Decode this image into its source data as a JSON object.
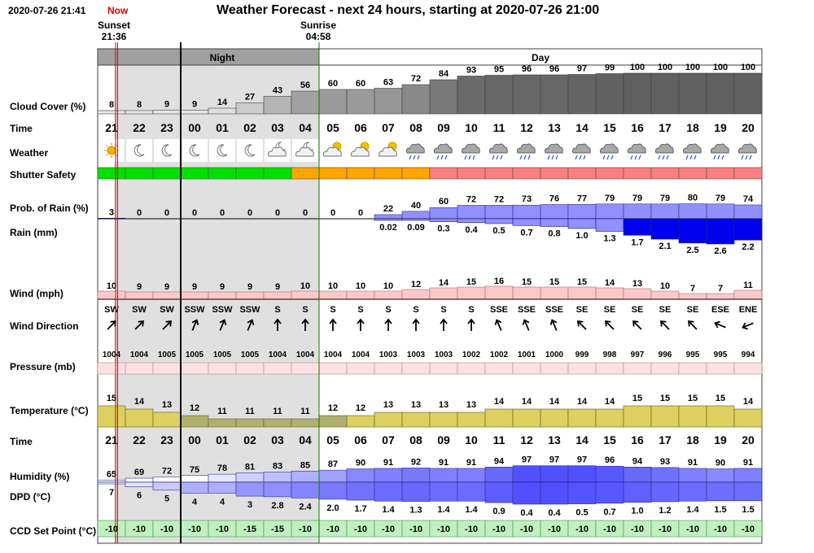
{
  "header": {
    "timestamp": "2020-07-26 21:41",
    "now_label": "Now",
    "title": "Weather Forecast - next 24 hours, starting at 2020-07-26 21:00",
    "sunset_label": "Sunset",
    "sunset_time": "21:36",
    "sunrise_label": "Sunrise",
    "sunrise_time": "04:58",
    "night_label": "Night",
    "day_label": "Day"
  },
  "labels": {
    "cloud": "Cloud Cover (%)",
    "time": "Time",
    "weather": "Weather",
    "shutter": "Shutter Safety",
    "prob_rain": "Prob. of Rain (%)",
    "rain": "Rain (mm)",
    "wind": "Wind (mph)",
    "wind_dir": "Wind Direction",
    "pressure": "Pressure (mb)",
    "temperature": "Temperature (°C)",
    "time2": "Time",
    "humidity": "Humidity (%)",
    "dpd": "DPD (°C)",
    "ccd": "CCD Set Point (°C)"
  },
  "chart_data": {
    "type": "table",
    "title": "Weather Forecast - next 24 hours, starting at 2020-07-26 21:00",
    "hours": [
      "21",
      "22",
      "23",
      "00",
      "01",
      "02",
      "03",
      "04",
      "05",
      "06",
      "07",
      "08",
      "09",
      "10",
      "11",
      "12",
      "13",
      "14",
      "15",
      "16",
      "17",
      "18",
      "19",
      "20"
    ],
    "cloud_cover": [
      8,
      8,
      9,
      9,
      14,
      27,
      43,
      56,
      60,
      60,
      63,
      72,
      84,
      93,
      95,
      96,
      96,
      97,
      99,
      100,
      100,
      100,
      100,
      100
    ],
    "weather": [
      "sun",
      "moon",
      "moon",
      "moon",
      "moon",
      "moon",
      "cloud-moon",
      "cloud-moon",
      "cloud-sun",
      "cloud-sun",
      "cloud-sun",
      "rain",
      "rain",
      "rain",
      "rain",
      "rain",
      "rain",
      "rain",
      "rain",
      "rain",
      "rain",
      "rain",
      "rain",
      "rain"
    ],
    "shutter_safety": [
      "green",
      "green",
      "green",
      "green",
      "green",
      "green",
      "green",
      "orange",
      "orange",
      "orange",
      "orange",
      "orange",
      "red",
      "red",
      "red",
      "red",
      "red",
      "red",
      "red",
      "red",
      "red",
      "red",
      "red",
      "red"
    ],
    "prob_of_rain": [
      3,
      0,
      0,
      0,
      0,
      0,
      0,
      0,
      0,
      0,
      22,
      40,
      60,
      72,
      72,
      73,
      76,
      77,
      79,
      79,
      79,
      80,
      79,
      74
    ],
    "rain_mm": [
      "",
      "",
      "",
      "",
      "",
      "",
      "",
      "",
      "",
      "",
      "0.02",
      "0.09",
      "0.3",
      "0.4",
      "0.5",
      "0.7",
      "0.8",
      "1.0",
      "1.3",
      "1.7",
      "2.1",
      "2.5",
      "2.6",
      "2.2"
    ],
    "wind_mph": [
      10,
      9,
      9,
      9,
      9,
      9,
      9,
      10,
      10,
      10,
      10,
      12,
      14,
      15,
      16,
      15,
      15,
      15,
      14,
      13,
      10,
      7,
      7,
      11
    ],
    "wind_direction": [
      "SW",
      "SW",
      "SW",
      "SSW",
      "SSW",
      "SSW",
      "S",
      "S",
      "S",
      "S",
      "S",
      "S",
      "S",
      "S",
      "SSE",
      "SSE",
      "SSE",
      "SE",
      "SE",
      "SE",
      "SE",
      "SE",
      "ESE",
      "ENE"
    ],
    "pressure_mb": [
      1004,
      1004,
      1005,
      1005,
      1005,
      1005,
      1004,
      1004,
      1004,
      1004,
      1003,
      1003,
      1003,
      1002,
      1002,
      1001,
      1000,
      999,
      998,
      997,
      996,
      995,
      995,
      994
    ],
    "temperature_c": [
      15,
      14,
      13,
      12,
      11,
      11,
      11,
      11,
      12,
      12,
      13,
      13,
      13,
      13,
      14,
      14,
      14,
      14,
      14,
      15,
      15,
      15,
      15,
      14
    ],
    "humidity_pct": [
      65,
      69,
      72,
      75,
      78,
      81,
      83,
      85,
      87,
      90,
      91,
      92,
      91,
      91,
      94,
      97,
      97,
      97,
      96,
      94,
      93,
      91,
      90,
      91
    ],
    "dpd_c": [
      "7",
      "6",
      "5",
      "4",
      "4",
      "3",
      "2.8",
      "2.4",
      "2.0",
      "1.7",
      "1.4",
      "1.3",
      "1.4",
      "1.4",
      "0.9",
      "0.4",
      "0.4",
      "0.5",
      "0.7",
      "1.0",
      "1.2",
      "1.4",
      "1.5",
      "1.5"
    ],
    "ccd_set_point_c": [
      -10,
      -10,
      -10,
      -10,
      -10,
      -15,
      -15,
      -10,
      -10,
      -10,
      -10,
      -10,
      -10,
      -10,
      -10,
      -10,
      -10,
      -10,
      -10,
      -10,
      -10,
      -10,
      -10,
      -10
    ]
  },
  "colors": {
    "shutter_green": "#00e000",
    "shutter_orange": "#ffa500",
    "shutter_red": "#f88080",
    "night_shade": "#e0e0e0",
    "now_line": "#e00000",
    "sunrise_line": "#008000",
    "cloud_dark": "#606060",
    "cloud_light": "#f4f4f4",
    "prob_rain": "#9090ff",
    "rain_blue": "#0000ee",
    "wind_pink": "#ffc8c8",
    "pressure_pink": "#ffe0e0",
    "temperature": "#dcd060",
    "temperature_night": "#b0b070",
    "humidity": "#5050ff",
    "ccd_green": "#c0f0c0"
  }
}
